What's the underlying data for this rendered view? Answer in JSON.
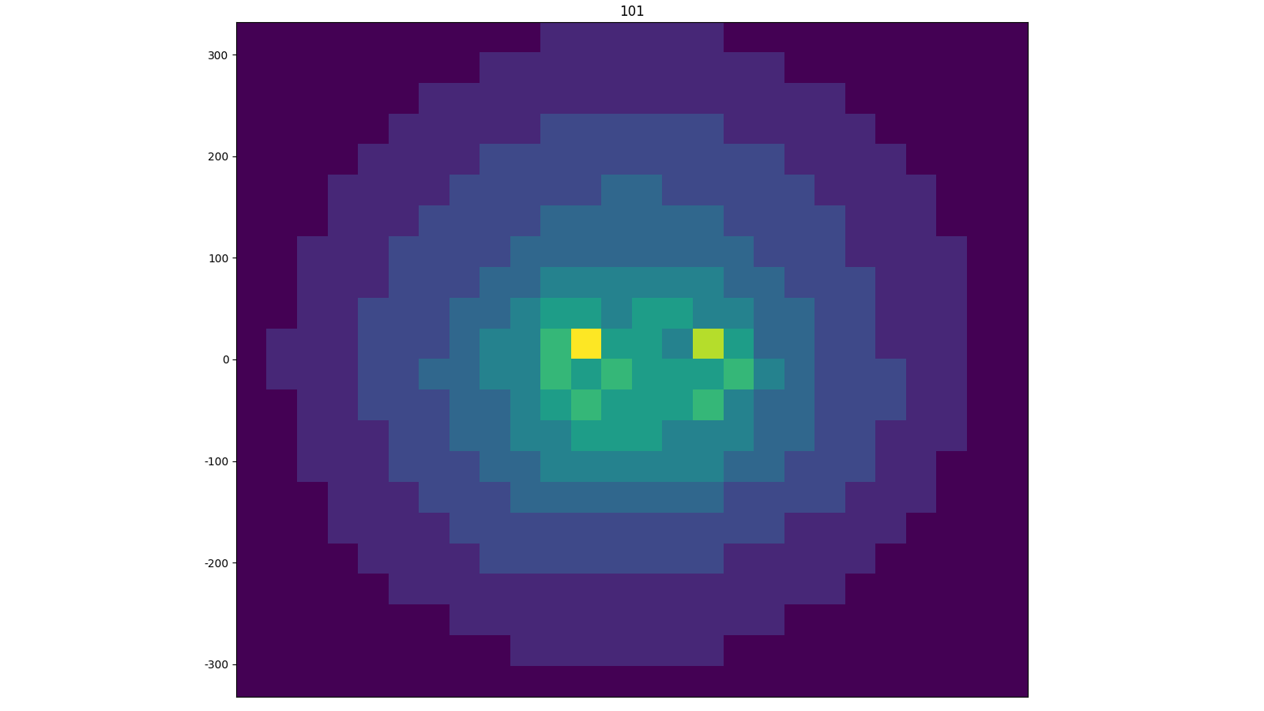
{
  "chart_data": {
    "type": "heatmap",
    "title": "101",
    "color": "viridis",
    "xlim": [
      -381,
      381
    ],
    "ylim": [
      -332,
      332
    ],
    "yticks": [
      -300,
      -200,
      -100,
      0,
      100,
      200,
      300
    ],
    "tick_labels": "y",
    "cells": [
      [
        1,
        1,
        1,
        1,
        1,
        1,
        1,
        1,
        1,
        1,
        2,
        2,
        2,
        2,
        2,
        2,
        1,
        1,
        1,
        1,
        1,
        1,
        1,
        1,
        1,
        1
      ],
      [
        1,
        1,
        1,
        1,
        1,
        1,
        1,
        1,
        2,
        2,
        2,
        2,
        2,
        2,
        2,
        2,
        2,
        2,
        1,
        1,
        1,
        1,
        1,
        1,
        1,
        1
      ],
      [
        1,
        1,
        1,
        1,
        1,
        1,
        2,
        2,
        2,
        2,
        2,
        2,
        2,
        2,
        2,
        2,
        2,
        2,
        2,
        2,
        1,
        1,
        1,
        1,
        1,
        1
      ],
      [
        1,
        1,
        1,
        1,
        1,
        2,
        2,
        2,
        2,
        2,
        3,
        3,
        3,
        3,
        3,
        3,
        2,
        2,
        2,
        2,
        2,
        1,
        1,
        1,
        1,
        1
      ],
      [
        1,
        1,
        1,
        1,
        2,
        2,
        2,
        2,
        3,
        3,
        3,
        3,
        3,
        3,
        3,
        3,
        3,
        3,
        2,
        2,
        2,
        2,
        1,
        1,
        1,
        1
      ],
      [
        1,
        1,
        1,
        2,
        2,
        2,
        2,
        3,
        3,
        3,
        3,
        3,
        4,
        4,
        3,
        3,
        3,
        3,
        3,
        2,
        2,
        2,
        2,
        1,
        1,
        1
      ],
      [
        1,
        1,
        1,
        2,
        2,
        2,
        3,
        3,
        3,
        3,
        4,
        4,
        4,
        4,
        4,
        4,
        3,
        3,
        3,
        3,
        2,
        2,
        2,
        1,
        1,
        1
      ],
      [
        1,
        1,
        2,
        2,
        2,
        3,
        3,
        3,
        3,
        4,
        4,
        4,
        4,
        4,
        4,
        4,
        4,
        3,
        3,
        3,
        2,
        2,
        2,
        2,
        1,
        1
      ],
      [
        1,
        1,
        2,
        2,
        2,
        3,
        3,
        3,
        4,
        4,
        5,
        5,
        5,
        5,
        5,
        5,
        4,
        4,
        3,
        3,
        3,
        2,
        2,
        2,
        1,
        1
      ],
      [
        1,
        1,
        2,
        2,
        3,
        3,
        3,
        4,
        4,
        5,
        6,
        6,
        5,
        6,
        6,
        5,
        5,
        4,
        4,
        3,
        3,
        2,
        2,
        2,
        1,
        1
      ],
      [
        1,
        2,
        2,
        2,
        3,
        3,
        3,
        4,
        5,
        5,
        7,
        10,
        6,
        6,
        5,
        9,
        6,
        4,
        4,
        3,
        3,
        2,
        2,
        2,
        1,
        1
      ],
      [
        1,
        2,
        2,
        2,
        3,
        3,
        4,
        4,
        5,
        5,
        7,
        6,
        7,
        6,
        6,
        6,
        7,
        5,
        4,
        3,
        3,
        3,
        2,
        2,
        1,
        1
      ],
      [
        1,
        1,
        2,
        2,
        3,
        3,
        3,
        4,
        4,
        5,
        6,
        7,
        6,
        6,
        6,
        7,
        5,
        4,
        4,
        3,
        3,
        3,
        2,
        2,
        1,
        1
      ],
      [
        1,
        1,
        2,
        2,
        2,
        3,
        3,
        4,
        4,
        5,
        5,
        6,
        6,
        6,
        5,
        5,
        5,
        4,
        4,
        3,
        3,
        2,
        2,
        2,
        1,
        1
      ],
      [
        1,
        1,
        2,
        2,
        2,
        3,
        3,
        3,
        4,
        4,
        5,
        5,
        5,
        5,
        5,
        5,
        4,
        4,
        3,
        3,
        3,
        2,
        2,
        1,
        1,
        1
      ],
      [
        1,
        1,
        1,
        2,
        2,
        2,
        3,
        3,
        3,
        4,
        4,
        4,
        4,
        4,
        4,
        4,
        3,
        3,
        3,
        3,
        2,
        2,
        2,
        1,
        1,
        1
      ],
      [
        1,
        1,
        1,
        2,
        2,
        2,
        2,
        3,
        3,
        3,
        3,
        3,
        3,
        3,
        3,
        3,
        3,
        3,
        2,
        2,
        2,
        2,
        1,
        1,
        1,
        1
      ],
      [
        1,
        1,
        1,
        1,
        2,
        2,
        2,
        2,
        3,
        3,
        3,
        3,
        3,
        3,
        3,
        3,
        2,
        2,
        2,
        2,
        2,
        1,
        1,
        1,
        1,
        1
      ],
      [
        1,
        1,
        1,
        1,
        1,
        2,
        2,
        2,
        2,
        2,
        2,
        2,
        2,
        2,
        2,
        2,
        2,
        2,
        2,
        2,
        1,
        1,
        1,
        1,
        1,
        1
      ],
      [
        1,
        1,
        1,
        1,
        1,
        1,
        1,
        2,
        2,
        2,
        2,
        2,
        2,
        2,
        2,
        2,
        2,
        2,
        1,
        1,
        1,
        1,
        1,
        1,
        1,
        1
      ],
      [
        1,
        1,
        1,
        1,
        1,
        1,
        1,
        1,
        1,
        2,
        2,
        2,
        2,
        2,
        2,
        2,
        1,
        1,
        1,
        1,
        1,
        1,
        1,
        1,
        1,
        1
      ],
      [
        1,
        1,
        1,
        1,
        1,
        1,
        1,
        1,
        1,
        1,
        1,
        1,
        1,
        1,
        1,
        1,
        1,
        1,
        1,
        1,
        1,
        1,
        1,
        1,
        1,
        1
      ]
    ]
  }
}
